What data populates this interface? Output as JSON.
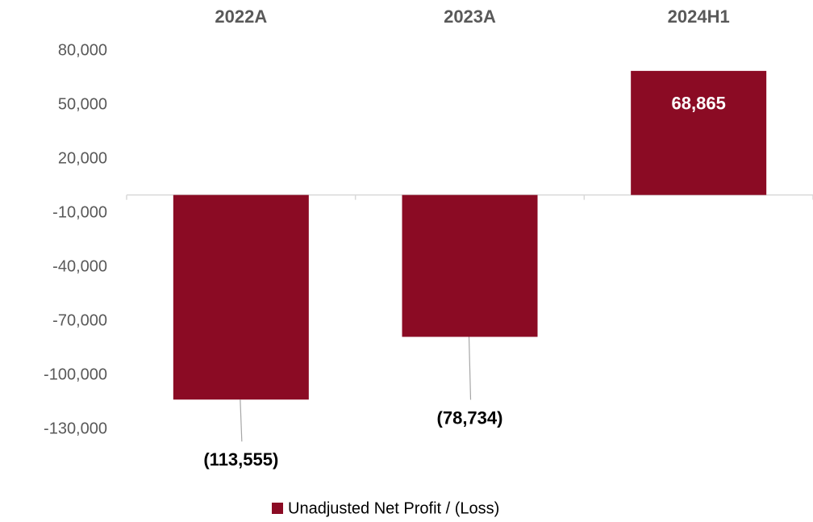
{
  "chart_data": {
    "type": "bar",
    "categories": [
      "2022A",
      "2023A",
      "2024H1"
    ],
    "series": [
      {
        "name": "Unadjusted Net Profit / (Loss)",
        "color": "#8b0b24",
        "values": [
          -113555,
          -78734,
          68865
        ],
        "value_labels": [
          "(113,555)",
          "(78,734)",
          "68,865"
        ]
      }
    ],
    "ylim": [
      -130000,
      80000
    ],
    "yticks": [
      {
        "value": -130000,
        "label": "-130,000"
      },
      {
        "value": -100000,
        "label": "-100,000"
      },
      {
        "value": -70000,
        "label": "-70,000"
      },
      {
        "value": -40000,
        "label": "-40,000"
      },
      {
        "value": -10000,
        "label": "-10,000"
      },
      {
        "value": 20000,
        "label": "20,000"
      },
      {
        "value": 50000,
        "label": "50,000"
      },
      {
        "value": 80000,
        "label": "80,000"
      }
    ],
    "grid": false,
    "legend": "bottom"
  }
}
